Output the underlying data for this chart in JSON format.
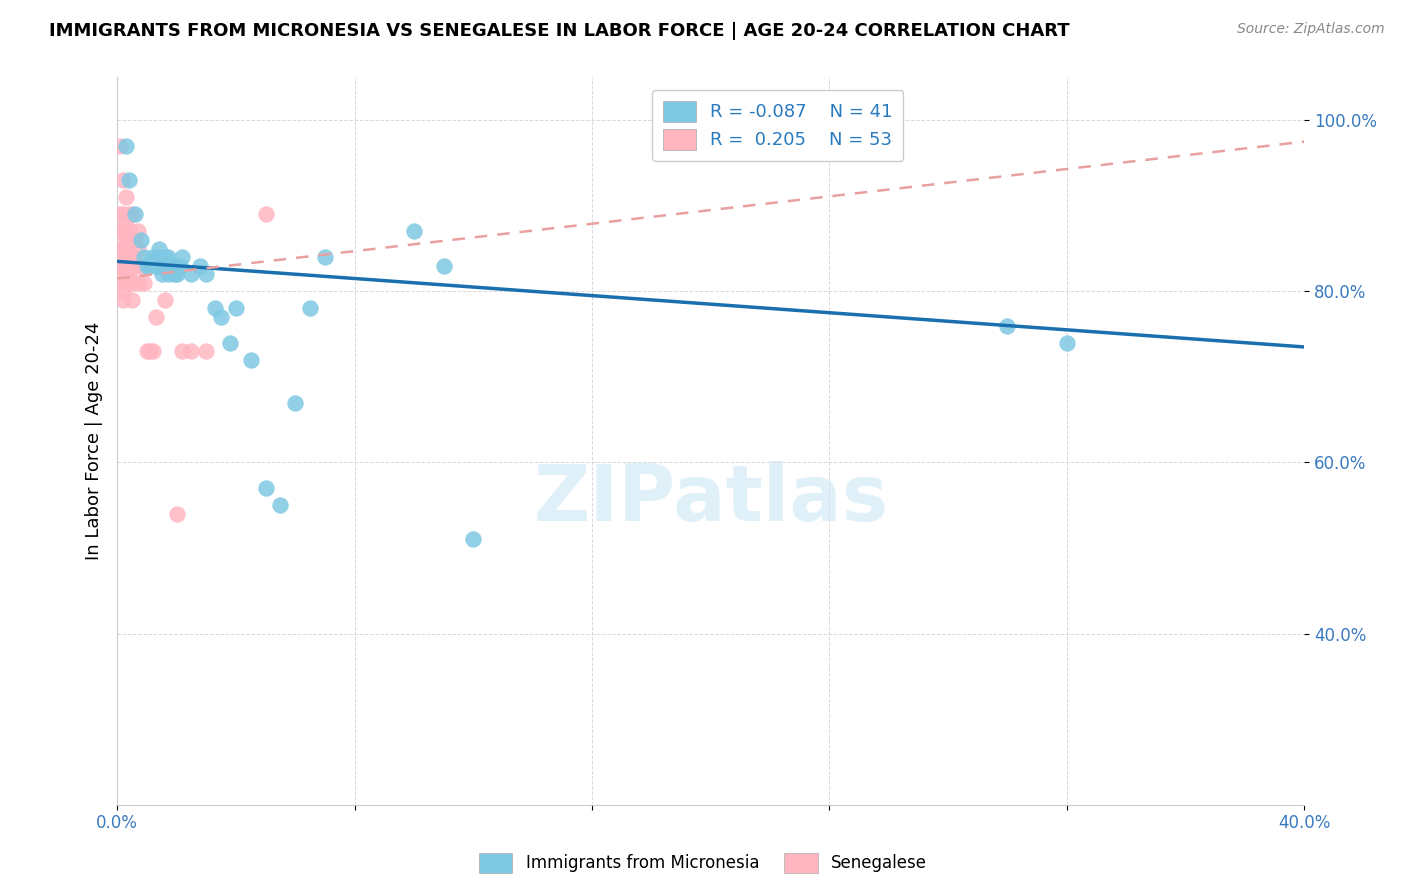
{
  "title": "IMMIGRANTS FROM MICRONESIA VS SENEGALESE IN LABOR FORCE | AGE 20-24 CORRELATION CHART",
  "source": "Source: ZipAtlas.com",
  "ylabel": "In Labor Force | Age 20-24",
  "xlim": [
    0.0,
    0.4
  ],
  "ylim": [
    0.2,
    1.05
  ],
  "xticks": [
    0.0,
    0.08,
    0.16,
    0.24,
    0.32,
    0.4
  ],
  "yticks": [
    0.4,
    0.6,
    0.8,
    1.0
  ],
  "xticklabels": [
    "0.0%",
    "",
    "",
    "",
    "",
    "40.0%"
  ],
  "yticklabels": [
    "40.0%",
    "60.0%",
    "80.0%",
    "100.0%"
  ],
  "blue_R": -0.087,
  "blue_N": 41,
  "pink_R": 0.205,
  "pink_N": 53,
  "blue_color": "#7ec8e3",
  "pink_color": "#ffb6c1",
  "blue_line_color": "#1a6faf",
  "pink_line_color": "#e8a0a0",
  "watermark": "ZIPatlas",
  "legend_label_blue": "Immigrants from Micronesia",
  "legend_label_pink": "Senegalese",
  "blue_line_x0": 0.0,
  "blue_line_y0": 0.835,
  "blue_line_x1": 0.4,
  "blue_line_y1": 0.735,
  "pink_line_x0": 0.0,
  "pink_line_y0": 0.815,
  "pink_line_x1": 0.4,
  "pink_line_y1": 0.975,
  "blue_scatter_x": [
    0.003,
    0.004,
    0.006,
    0.008,
    0.009,
    0.01,
    0.011,
    0.012,
    0.013,
    0.014,
    0.014,
    0.015,
    0.015,
    0.016,
    0.016,
    0.017,
    0.017,
    0.018,
    0.019,
    0.02,
    0.02,
    0.021,
    0.022,
    0.025,
    0.028,
    0.03,
    0.033,
    0.035,
    0.038,
    0.04,
    0.045,
    0.05,
    0.055,
    0.06,
    0.065,
    0.07,
    0.1,
    0.11,
    0.12,
    0.3,
    0.32
  ],
  "blue_scatter_y": [
    0.97,
    0.93,
    0.89,
    0.86,
    0.84,
    0.83,
    0.83,
    0.84,
    0.83,
    0.84,
    0.85,
    0.83,
    0.82,
    0.84,
    0.83,
    0.84,
    0.82,
    0.83,
    0.82,
    0.83,
    0.82,
    0.83,
    0.84,
    0.82,
    0.83,
    0.82,
    0.78,
    0.77,
    0.74,
    0.78,
    0.72,
    0.57,
    0.55,
    0.67,
    0.78,
    0.84,
    0.87,
    0.83,
    0.51,
    0.76,
    0.74
  ],
  "pink_scatter_x": [
    0.001,
    0.001,
    0.001,
    0.001,
    0.001,
    0.002,
    0.002,
    0.002,
    0.002,
    0.002,
    0.002,
    0.002,
    0.002,
    0.002,
    0.002,
    0.003,
    0.003,
    0.003,
    0.003,
    0.003,
    0.003,
    0.003,
    0.004,
    0.004,
    0.004,
    0.004,
    0.004,
    0.004,
    0.005,
    0.005,
    0.005,
    0.005,
    0.005,
    0.006,
    0.006,
    0.007,
    0.007,
    0.007,
    0.008,
    0.009,
    0.01,
    0.011,
    0.012,
    0.013,
    0.015,
    0.016,
    0.017,
    0.018,
    0.02,
    0.022,
    0.025,
    0.03,
    0.05
  ],
  "pink_scatter_y": [
    0.97,
    0.89,
    0.87,
    0.85,
    0.83,
    0.93,
    0.89,
    0.87,
    0.85,
    0.84,
    0.83,
    0.82,
    0.81,
    0.8,
    0.79,
    0.91,
    0.88,
    0.86,
    0.84,
    0.83,
    0.82,
    0.81,
    0.89,
    0.87,
    0.86,
    0.84,
    0.83,
    0.82,
    0.89,
    0.86,
    0.84,
    0.81,
    0.79,
    0.86,
    0.83,
    0.87,
    0.85,
    0.81,
    0.83,
    0.81,
    0.73,
    0.73,
    0.73,
    0.77,
    0.83,
    0.79,
    0.83,
    0.83,
    0.54,
    0.73,
    0.73,
    0.73,
    0.89
  ]
}
